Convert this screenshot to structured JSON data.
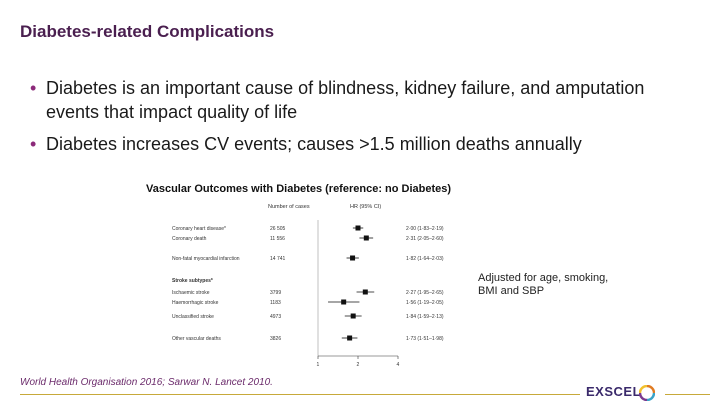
{
  "slide": {
    "title": "Diabetes-related Complications",
    "bullets": [
      "Diabetes is an important cause of blindness, kidney failure, and amputation events that impact quality of life",
      "Diabetes increases CV events; causes >1.5 million deaths annually"
    ],
    "chart_title": "Vascular Outcomes with Diabetes (reference: no Diabetes)",
    "adjusted_note": "Adjusted for age, smoking, BMI and SBP",
    "source": "World Health Organisation 2016; Sarwar N. Lancet 2010.",
    "brand": "EXSCEL",
    "colors": {
      "title": "#4a1f4f",
      "bullet": "#8c2a7a",
      "footer_line": "#c7a93a"
    }
  },
  "chart_data": {
    "type": "forest",
    "col_cases_label": "Number of cases",
    "col_hr_label": "HR (95% CI)",
    "xticks": [
      "1",
      "2",
      "4"
    ],
    "xscale": "log",
    "rows": [
      {
        "label": "Coronary heart disease*",
        "cases": "26 505",
        "hr": 2.0,
        "lo": 1.83,
        "hi": 2.19,
        "ci_text": "2·00 (1·83–2·19)"
      },
      {
        "label": "Coronary death",
        "cases": "11 556",
        "hr": 2.31,
        "lo": 2.05,
        "hi": 2.6,
        "ci_text": "2·31 (2·05–2·60)"
      },
      {
        "label": "Non-fatal myocardial infarction",
        "cases": "14 741",
        "hr": 1.82,
        "lo": 1.64,
        "hi": 2.03,
        "ci_text": "1·82 (1·64–2·03)"
      },
      {
        "label": "Stroke subtypes*",
        "cases": "",
        "hr": null,
        "ci_text": ""
      },
      {
        "label": "Ischaemic stroke",
        "cases": "3799",
        "hr": 2.27,
        "lo": 1.95,
        "hi": 2.65,
        "ci_text": "2·27 (1·95–2·65)"
      },
      {
        "label": "Haemorrhagic stroke",
        "cases": "1183",
        "hr": 1.56,
        "lo": 1.19,
        "hi": 2.05,
        "ci_text": "1·56 (1·19–2·05)"
      },
      {
        "label": "Unclassified stroke",
        "cases": "4973",
        "hr": 1.84,
        "lo": 1.59,
        "hi": 2.13,
        "ci_text": "1·84 (1·59–2·13)"
      },
      {
        "label": "Other vascular deaths",
        "cases": "3826",
        "hr": 1.73,
        "lo": 1.51,
        "hi": 1.98,
        "ci_text": "1·73 (1·51–1·98)"
      }
    ]
  }
}
